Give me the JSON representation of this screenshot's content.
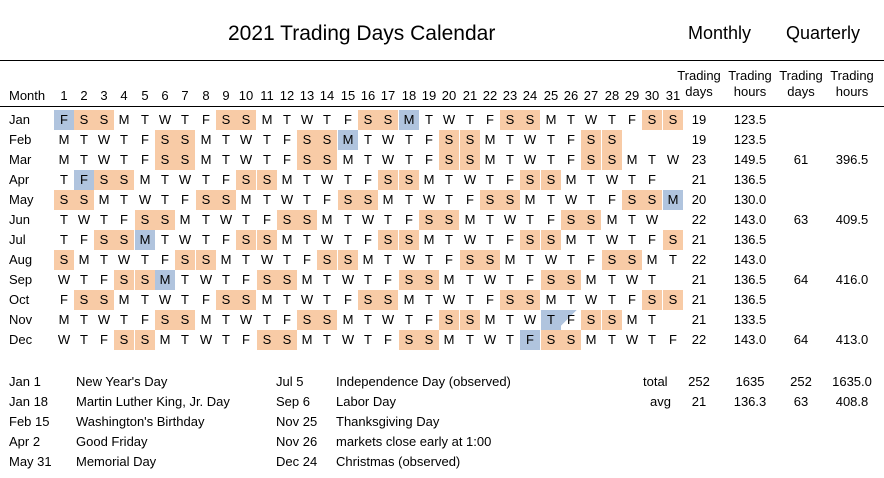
{
  "title": "2021 Trading Days Calendar",
  "section_monthly": "Monthly",
  "section_quarterly": "Quarterly",
  "header": {
    "month": "Month",
    "days": [
      "1",
      "2",
      "3",
      "4",
      "5",
      "6",
      "7",
      "8",
      "9",
      "10",
      "11",
      "12",
      "13",
      "14",
      "15",
      "16",
      "17",
      "18",
      "19",
      "20",
      "21",
      "22",
      "23",
      "24",
      "25",
      "26",
      "27",
      "28",
      "29",
      "30",
      "31"
    ],
    "m_trading_days": [
      "Trading",
      "days"
    ],
    "m_trading_hours": [
      "Trading",
      "hours"
    ],
    "q_trading_days": [
      "Trading",
      "days"
    ],
    "q_trading_hours": [
      "Trading",
      "hours"
    ]
  },
  "months": [
    {
      "name": "Jan",
      "days": "FSSMTWTFSSMTWTFSSMTWTFSSMTWTFSS",
      "holidays": [
        1,
        18
      ],
      "days_count": "19",
      "hours": "123.5",
      "q_days": "",
      "q_hours": ""
    },
    {
      "name": "Feb",
      "days": "MTWTFSSMTWTFSSMTWTFSSMTWTFSS",
      "holidays": [
        15
      ],
      "days_count": "19",
      "hours": "123.5",
      "q_days": "",
      "q_hours": ""
    },
    {
      "name": "Mar",
      "days": "MTWTFSSMTWTFSSMTWTFSSMTWTFSSMTW",
      "holidays": [],
      "days_count": "23",
      "hours": "149.5",
      "q_days": "61",
      "q_hours": "396.5"
    },
    {
      "name": "Apr",
      "days": "TFSSMTWTFSSMTWTFSSMTWTFSSMTWTF",
      "holidays": [
        2
      ],
      "days_count": "21",
      "hours": "136.5",
      "q_days": "",
      "q_hours": ""
    },
    {
      "name": "May",
      "days": "SSMTWTFSSMTWTFSSMTWTFSSMTWTFSSM",
      "holidays": [
        31
      ],
      "days_count": "20",
      "hours": "130.0",
      "q_days": "",
      "q_hours": ""
    },
    {
      "name": "Jun",
      "days": "TWTFSSMTWTFSSMTWTFSSMTWTFSSMTW",
      "holidays": [],
      "days_count": "22",
      "hours": "143.0",
      "q_days": "63",
      "q_hours": "409.5"
    },
    {
      "name": "Jul",
      "days": "TFSSMTWTFSSMTWTFSSMTWTFSSMTWTFS",
      "holidays": [
        5
      ],
      "days_count": "21",
      "hours": "136.5",
      "q_days": "",
      "q_hours": ""
    },
    {
      "name": "Aug",
      "days": "SMTWTFSSMTWTFSSMTWTFSSMTWTFSSMT",
      "holidays": [],
      "days_count": "22",
      "hours": "143.0",
      "q_days": "",
      "q_hours": ""
    },
    {
      "name": "Sep",
      "days": "WTFSSMTWTFSSMTWTFSSMTWTFSSMTWT",
      "holidays": [
        6
      ],
      "days_count": "21",
      "hours": "136.5",
      "q_days": "64",
      "q_hours": "416.0"
    },
    {
      "name": "Oct",
      "days": "FSSMTWTFSSMTWTFSSMTWTFSSMTWTFSS",
      "holidays": [],
      "days_count": "21",
      "hours": "136.5",
      "q_days": "",
      "q_hours": ""
    },
    {
      "name": "Nov",
      "days": "MTWTFSSMTWTFSSMTWTFSSMTWTFSSMT",
      "holidays": [
        25
      ],
      "early_close": [
        26
      ],
      "days_count": "21",
      "hours": "133.5",
      "q_days": "",
      "q_hours": ""
    },
    {
      "name": "Dec",
      "days": "WTFSSMTWTFSSMTWTFSSMTWTFSSMTWTF",
      "holidays": [
        24
      ],
      "days_count": "22",
      "hours": "143.0",
      "q_days": "64",
      "q_hours": "413.0"
    }
  ],
  "holidays_left": [
    {
      "date": "Jan 1",
      "name": "New Year's Day"
    },
    {
      "date": "Jan 18",
      "name": "Martin Luther King, Jr. Day"
    },
    {
      "date": "Feb 15",
      "name": "Washington's Birthday"
    },
    {
      "date": "Apr 2",
      "name": "Good Friday"
    },
    {
      "date": "May 31",
      "name": "Memorial Day"
    }
  ],
  "holidays_right": [
    {
      "date": "Jul 5",
      "name": "Independence Day (observed)"
    },
    {
      "date": "Sep 6",
      "name": "Labor Day"
    },
    {
      "date": "Nov 25",
      "name": "Thanksgiving Day"
    },
    {
      "date": "Nov 26",
      "name": "markets close early at 1:00"
    },
    {
      "date": "Dec 24",
      "name": "Christmas (observed)"
    }
  ],
  "totals": {
    "total_label": "total",
    "total_days": "252",
    "total_hours": "1635",
    "total_q_days": "252",
    "total_q_hours": "1635.0",
    "avg_label": "avg",
    "avg_days": "21",
    "avg_hours": "136.3",
    "avg_q_days": "63",
    "avg_q_hours": "408.8"
  },
  "colors": {
    "weekend": "#f8cba6",
    "holiday": "#b0c4de"
  }
}
